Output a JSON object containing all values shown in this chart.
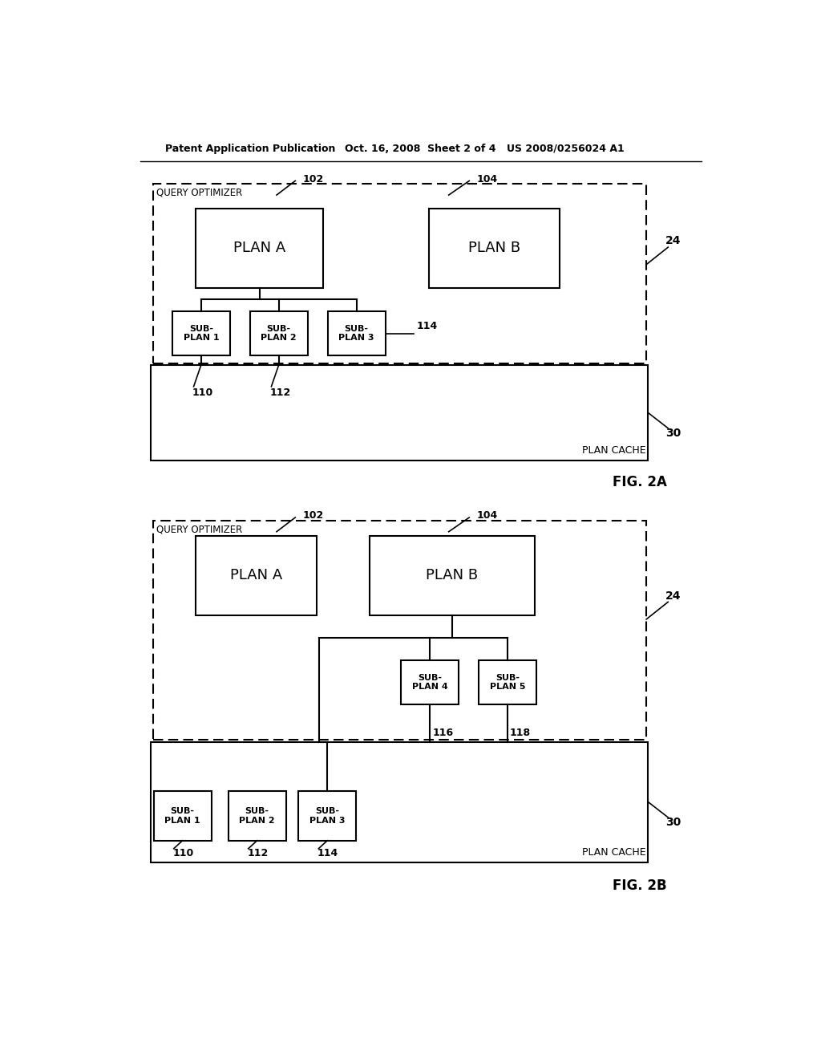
{
  "bg_color": "#ffffff",
  "text_color": "#000000",
  "header_left": "Patent Application Publication",
  "header_mid": "Oct. 16, 2008  Sheet 2 of 4",
  "header_right": "US 2008/0256024 A1",
  "fig2a_label": "FIG. 2A",
  "fig2b_label": "FIG. 2B",
  "query_optimizer": "QUERY OPTIMIZER",
  "plan_cache": "PLAN CACHE",
  "plan_a": "PLAN A",
  "plan_b": "PLAN B",
  "sub1": "SUB-\nPLAN 1",
  "sub2": "SUB-\nPLAN 2",
  "sub3": "SUB-\nPLAN 3",
  "sub4": "SUB-\nPLAN 4",
  "sub5": "SUB-\nPLAN 5",
  "ref102": "102",
  "ref104": "104",
  "ref110": "110",
  "ref112": "112",
  "ref114": "114",
  "ref116": "116",
  "ref118": "118",
  "ref24": "24",
  "ref30": "30"
}
